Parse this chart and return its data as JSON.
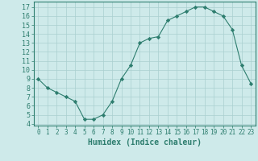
{
  "x": [
    0,
    1,
    2,
    3,
    4,
    5,
    6,
    7,
    8,
    9,
    10,
    11,
    12,
    13,
    14,
    15,
    16,
    17,
    18,
    19,
    20,
    21,
    22,
    23
  ],
  "y": [
    9,
    8,
    7.5,
    7,
    6.5,
    4.5,
    4.5,
    5,
    6.5,
    9,
    10.5,
    13,
    13.5,
    13.7,
    15.5,
    16,
    16.5,
    17,
    17,
    16.5,
    16,
    14.5,
    10.5,
    8.5
  ],
  "xlabel": "Humidex (Indice chaleur)",
  "line_color": "#2d7d6e",
  "marker": "D",
  "marker_size": 2.2,
  "bg_color": "#ceeaea",
  "grid_color": "#aacfcf",
  "xlim": [
    -0.5,
    23.5
  ],
  "ylim": [
    3.8,
    17.6
  ],
  "yticks": [
    4,
    5,
    6,
    7,
    8,
    9,
    10,
    11,
    12,
    13,
    14,
    15,
    16,
    17
  ],
  "xtick_fontsize": 5.5,
  "ytick_fontsize": 6.0,
  "xlabel_fontsize": 7.0,
  "tick_color": "#2d7d6e",
  "axis_color": "#2d7d6e"
}
